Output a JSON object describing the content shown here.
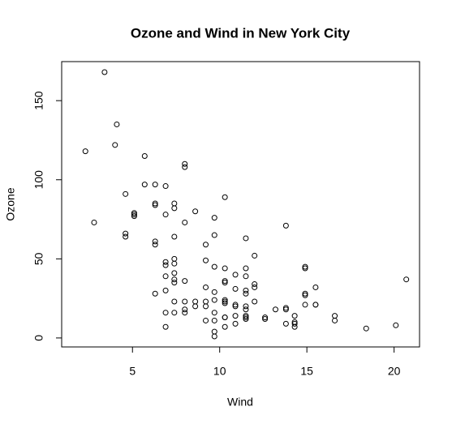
{
  "chart_data": {
    "type": "scatter",
    "title": "Ozone and Wind in New York City",
    "x_label": "Wind",
    "y_label": "Ozone",
    "xlim": [
      0.94,
      21.46
    ],
    "ylim": [
      -5.68,
      174.68
    ],
    "xticks": [
      5,
      10,
      15,
      20
    ],
    "yticks": [
      0,
      50,
      100,
      150
    ],
    "series": [
      {
        "color": "#000000",
        "x": [
          7.4,
          8.0,
          12.6,
          11.5,
          14.9,
          8.6,
          13.8,
          20.1,
          6.9,
          9.7,
          9.2,
          10.9,
          13.2,
          11.5,
          12.0,
          18.4,
          11.5,
          9.7,
          9.7,
          16.6,
          9.7,
          12.0,
          12.0,
          14.9,
          5.7,
          7.4,
          9.7,
          13.8,
          11.5,
          8.0,
          14.9,
          20.7,
          9.2,
          11.5,
          10.3,
          4.1,
          9.2,
          9.2,
          4.6,
          10.9,
          5.1,
          6.3,
          5.7,
          7.4,
          14.3,
          14.9,
          14.3,
          6.9,
          10.3,
          6.3,
          5.1,
          11.5,
          6.9,
          8.6,
          8.0,
          8.6,
          12.0,
          7.4,
          7.4,
          7.4,
          9.2,
          6.9,
          13.8,
          7.4,
          6.9,
          7.4,
          4.6,
          4.0,
          10.3,
          8.0,
          11.5,
          11.5,
          9.7,
          10.3,
          6.3,
          7.4,
          10.9,
          10.3,
          15.5,
          14.3,
          9.7,
          3.4,
          8.0,
          9.7,
          2.3,
          6.3,
          6.3,
          6.9,
          5.1,
          2.8,
          4.6,
          7.4,
          15.5,
          10.9,
          10.3,
          10.9,
          9.7,
          14.9,
          15.5,
          6.3,
          10.9,
          11.5,
          6.9,
          13.8,
          10.3,
          10.3,
          8.0,
          12.6,
          9.2,
          10.3,
          10.3,
          16.6,
          6.9,
          14.3,
          8.0,
          11.5
        ],
        "values": [
          41,
          36,
          12,
          18,
          28,
          23,
          19,
          8,
          7,
          16,
          11,
          14,
          18,
          14,
          34,
          6,
          30,
          11,
          1,
          11,
          4,
          32,
          23,
          45,
          115,
          37,
          29,
          71,
          39,
          23,
          21,
          37,
          20,
          12,
          13,
          135,
          49,
          32,
          64,
          40,
          77,
          97,
          97,
          85,
          10,
          27,
          7,
          48,
          35,
          61,
          79,
          63,
          16,
          80,
          108,
          20,
          52,
          82,
          50,
          64,
          59,
          39,
          9,
          16,
          78,
          35,
          66,
          122,
          89,
          110,
          44,
          28,
          65,
          22,
          59,
          23,
          31,
          44,
          21,
          9,
          45,
          168,
          73,
          76,
          118,
          84,
          85,
          96,
          78,
          73,
          91,
          47,
          32,
          20,
          23,
          21,
          24,
          44,
          21,
          28,
          9,
          13,
          46,
          18,
          13,
          24,
          16,
          13,
          23,
          36,
          7,
          14,
          30,
          14,
          18,
          20
        ]
      }
    ]
  }
}
